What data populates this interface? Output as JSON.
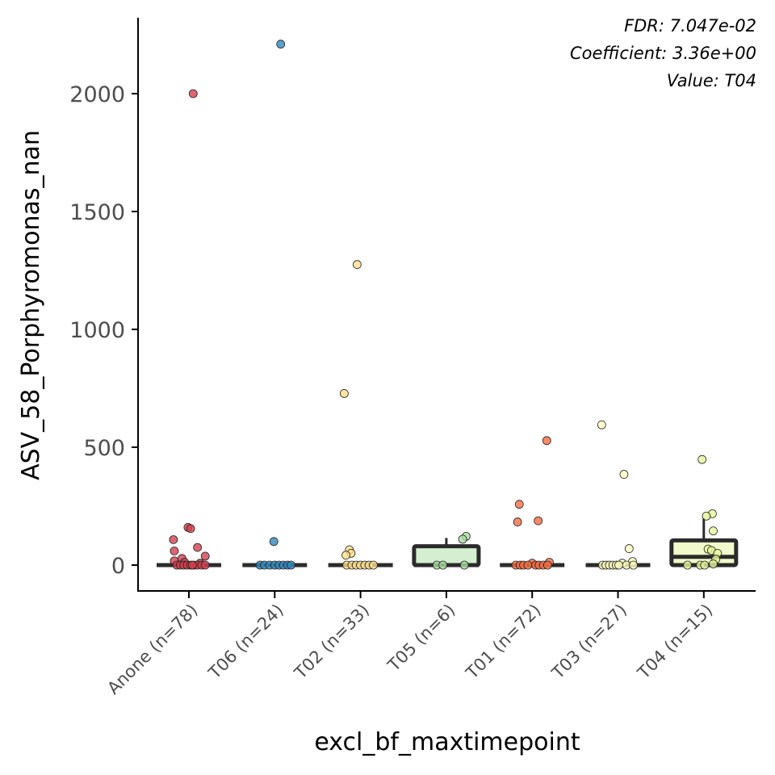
{
  "chart_data": {
    "type": "box",
    "xlabel": "excl_bf_maxtimepoint",
    "ylabel": "ASV_58_Porphyromonas_nan",
    "ylim": [
      -110,
      2250
    ],
    "yticks": [
      0,
      500,
      1000,
      1500,
      2000
    ],
    "ytick_labels": [
      "0",
      "500",
      "1000",
      "1500",
      "2000"
    ],
    "grid": false,
    "legend": "none",
    "annotations": [
      "FDR: 7.047e-02",
      "Coefficient: 3.36e+00",
      "Value: T04"
    ],
    "categories": [
      "Anone (n=78)",
      "T06 (n=24)",
      "T02 (n=33)",
      "T05 (n=6)",
      "T01 (n=72)",
      "T03 (n=27)",
      "T04 (n=15)"
    ],
    "groups": [
      {
        "name": "Anone (n=78)",
        "color": "#d53e4f",
        "box": {
          "q1": 0,
          "median": 0,
          "q3": 0,
          "whisker_low": 0,
          "whisker_high": 0
        },
        "points": [
          {
            "dx": 0.05,
            "y": 2000
          },
          {
            "dx": -0.01,
            "y": 160
          },
          {
            "dx": 0.02,
            "y": 155
          },
          {
            "dx": -0.18,
            "y": 108
          },
          {
            "dx": 0.1,
            "y": 75
          },
          {
            "dx": -0.17,
            "y": 60
          },
          {
            "dx": 0.19,
            "y": 38
          },
          {
            "dx": -0.08,
            "y": 28
          },
          {
            "dx": -0.17,
            "y": 18
          },
          {
            "dx": -0.05,
            "y": 12
          },
          {
            "dx": 0.13,
            "y": 8
          },
          {
            "dx": -0.14,
            "y": 0
          },
          {
            "dx": -0.1,
            "y": 0
          },
          {
            "dx": -0.06,
            "y": 0
          },
          {
            "dx": -0.02,
            "y": 0
          },
          {
            "dx": 0.02,
            "y": 0
          },
          {
            "dx": 0.06,
            "y": 0
          },
          {
            "dx": 0.1,
            "y": 0
          },
          {
            "dx": 0.15,
            "y": 0
          },
          {
            "dx": 0.19,
            "y": 0
          },
          {
            "dx": 0.04,
            "y": 0
          }
        ]
      },
      {
        "name": "T06 (n=24)",
        "color": "#3288bd",
        "box": {
          "q1": 0,
          "median": 0,
          "q3": 0,
          "whisker_low": 0,
          "whisker_high": 0
        },
        "points": [
          {
            "dx": 0.07,
            "y": 2210
          },
          {
            "dx": -0.01,
            "y": 100
          },
          {
            "dx": -0.17,
            "y": 0
          },
          {
            "dx": -0.12,
            "y": 0
          },
          {
            "dx": -0.06,
            "y": 0
          },
          {
            "dx": 0.0,
            "y": 0
          },
          {
            "dx": 0.05,
            "y": 0
          },
          {
            "dx": 0.1,
            "y": 0
          },
          {
            "dx": 0.15,
            "y": 0
          },
          {
            "dx": 0.19,
            "y": 0
          }
        ]
      },
      {
        "name": "T02 (n=33)",
        "color": "#fee08b",
        "box": {
          "q1": 0,
          "median": 0,
          "q3": 0,
          "whisker_low": 0,
          "whisker_high": 0
        },
        "points": [
          {
            "dx": -0.04,
            "y": 1275
          },
          {
            "dx": -0.19,
            "y": 728
          },
          {
            "dx": -0.13,
            "y": 65
          },
          {
            "dx": -0.11,
            "y": 50
          },
          {
            "dx": -0.17,
            "y": 42
          },
          {
            "dx": -0.16,
            "y": 0
          },
          {
            "dx": -0.1,
            "y": 0
          },
          {
            "dx": -0.05,
            "y": 0
          },
          {
            "dx": 0.0,
            "y": 0
          },
          {
            "dx": 0.05,
            "y": 0
          },
          {
            "dx": 0.1,
            "y": 0
          },
          {
            "dx": 0.15,
            "y": 0
          }
        ]
      },
      {
        "name": "T05 (n=6)",
        "color": "#abdda4",
        "box": {
          "q1": 0,
          "median": 0,
          "q3": 80,
          "whisker_low": 0,
          "whisker_high": 115
        },
        "points": [
          {
            "dx": 0.23,
            "y": 122
          },
          {
            "dx": 0.19,
            "y": 110
          },
          {
            "dx": -0.11,
            "y": 0
          },
          {
            "dx": -0.04,
            "y": 0
          },
          {
            "dx": 0.21,
            "y": 0
          }
        ]
      },
      {
        "name": "T01 (n=72)",
        "color": "#f46d43",
        "box": {
          "q1": 0,
          "median": 0,
          "q3": 0,
          "whisker_low": 0,
          "whisker_high": 0
        },
        "points": [
          {
            "dx": 0.17,
            "y": 528
          },
          {
            "dx": -0.15,
            "y": 258
          },
          {
            "dx": 0.07,
            "y": 188
          },
          {
            "dx": -0.17,
            "y": 183
          },
          {
            "dx": 0.2,
            "y": 12
          },
          {
            "dx": 0.0,
            "y": 8
          },
          {
            "dx": -0.19,
            "y": 0
          },
          {
            "dx": -0.14,
            "y": 0
          },
          {
            "dx": -0.1,
            "y": 0
          },
          {
            "dx": -0.05,
            "y": 0
          },
          {
            "dx": 0.04,
            "y": 0
          },
          {
            "dx": 0.08,
            "y": 0
          },
          {
            "dx": 0.13,
            "y": 0
          },
          {
            "dx": 0.18,
            "y": 0
          }
        ]
      },
      {
        "name": "T03 (n=27)",
        "color": "#ffffbf",
        "box": {
          "q1": 0,
          "median": 0,
          "q3": 0,
          "whisker_low": 0,
          "whisker_high": 0
        },
        "points": [
          {
            "dx": -0.19,
            "y": 595
          },
          {
            "dx": 0.07,
            "y": 385
          },
          {
            "dx": 0.13,
            "y": 70
          },
          {
            "dx": 0.17,
            "y": 15
          },
          {
            "dx": 0.05,
            "y": 8
          },
          {
            "dx": -0.18,
            "y": 0
          },
          {
            "dx": -0.14,
            "y": 0
          },
          {
            "dx": -0.1,
            "y": 0
          },
          {
            "dx": -0.06,
            "y": 0
          },
          {
            "dx": -0.02,
            "y": 0
          },
          {
            "dx": 0.01,
            "y": 0
          },
          {
            "dx": 0.1,
            "y": 0
          },
          {
            "dx": 0.18,
            "y": 0
          }
        ]
      },
      {
        "name": "T04 (n=15)",
        "color": "#e6f598",
        "box": {
          "q1": 0,
          "median": 35,
          "q3": 105,
          "whisker_low": 0,
          "whisker_high": 200
        },
        "points": [
          {
            "dx": -0.02,
            "y": 448
          },
          {
            "dx": 0.1,
            "y": 218
          },
          {
            "dx": 0.03,
            "y": 208
          },
          {
            "dx": 0.11,
            "y": 145
          },
          {
            "dx": 0.05,
            "y": 68
          },
          {
            "dx": 0.09,
            "y": 62
          },
          {
            "dx": 0.16,
            "y": 50
          },
          {
            "dx": 0.14,
            "y": 25
          },
          {
            "dx": 0.11,
            "y": 5
          },
          {
            "dx": -0.19,
            "y": 0
          },
          {
            "dx": -0.04,
            "y": 0
          },
          {
            "dx": 0.01,
            "y": 0
          }
        ]
      }
    ]
  }
}
